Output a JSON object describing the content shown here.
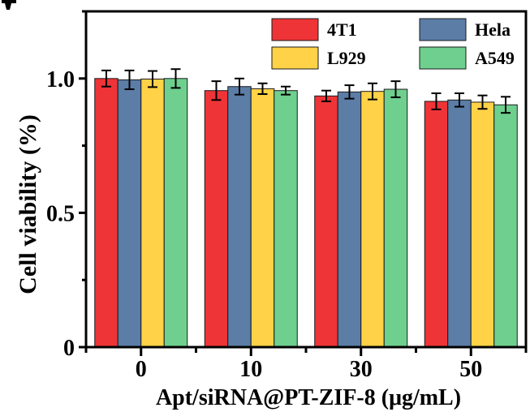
{
  "chart_data": {
    "type": "bar",
    "title": "",
    "xlabel": "Apt/siRNA@PT-ZIF-8 (μg/mL)",
    "ylabel": "Cell viability (%)",
    "ylim": [
      0,
      1.25
    ],
    "yticks": [
      0,
      0.5,
      1.0
    ],
    "ytick_labels": [
      "0",
      "0.5",
      "1.0"
    ],
    "categories": [
      "0",
      "10",
      "30",
      "50"
    ],
    "grid": false,
    "legend_position": "top-right",
    "series": [
      {
        "name": "4T1",
        "color": "#ee3437",
        "values": [
          1.0,
          0.955,
          0.935,
          0.915
        ],
        "errors": [
          0.03,
          0.035,
          0.02,
          0.03
        ]
      },
      {
        "name": "Hela",
        "color": "#5b7da6",
        "values": [
          0.995,
          0.97,
          0.95,
          0.92
        ],
        "errors": [
          0.035,
          0.03,
          0.025,
          0.025
        ]
      },
      {
        "name": "L929",
        "color": "#ffd247",
        "values": [
          0.998,
          0.962,
          0.952,
          0.912
        ],
        "errors": [
          0.03,
          0.02,
          0.03,
          0.025
        ]
      },
      {
        "name": "A549",
        "color": "#6fcf8e",
        "values": [
          1.0,
          0.955,
          0.96,
          0.902
        ],
        "errors": [
          0.035,
          0.015,
          0.03,
          0.03
        ]
      }
    ]
  }
}
